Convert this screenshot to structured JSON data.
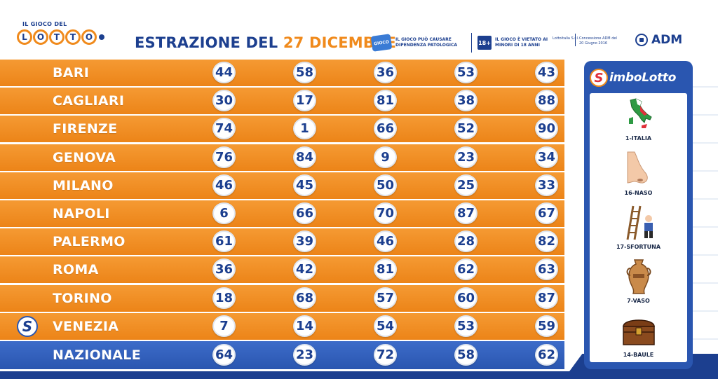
{
  "header": {
    "logo": {
      "top_text": "IL GIOCO DEL",
      "letters": [
        "L",
        "O",
        "T",
        "T",
        "O"
      ]
    },
    "title_prefix": "ESTRAZIONE DEL",
    "title_date": "27 DICEMBRE",
    "warning_badge": "GIOCO",
    "warning_text": "IL GIOCO PUÒ CAUSARE DIPENDENZA PATOLOGICA",
    "age_badge": "18+",
    "age_text": "IL GIOCO È VIETATO AI MINORI DI 18 ANNI",
    "operator_text": "Lottoitalia S.r.l.",
    "concession_text": "Concessione ADM del 20 Giugno 2016",
    "adm_label": "ADM"
  },
  "draws": [
    {
      "city": "BARI",
      "numbers": [
        "44",
        "58",
        "36",
        "53",
        "43"
      ]
    },
    {
      "city": "CAGLIARI",
      "numbers": [
        "30",
        "17",
        "81",
        "38",
        "88"
      ]
    },
    {
      "city": "FIRENZE",
      "numbers": [
        "74",
        "1",
        "66",
        "52",
        "90"
      ]
    },
    {
      "city": "GENOVA",
      "numbers": [
        "76",
        "84",
        "9",
        "23",
        "34"
      ]
    },
    {
      "city": "MILANO",
      "numbers": [
        "46",
        "45",
        "50",
        "25",
        "33"
      ]
    },
    {
      "city": "NAPOLI",
      "numbers": [
        "6",
        "66",
        "70",
        "87",
        "67"
      ]
    },
    {
      "city": "PALERMO",
      "numbers": [
        "61",
        "39",
        "46",
        "28",
        "82"
      ]
    },
    {
      "city": "ROMA",
      "numbers": [
        "36",
        "42",
        "81",
        "62",
        "63"
      ]
    },
    {
      "city": "TORINO",
      "numbers": [
        "18",
        "68",
        "57",
        "60",
        "87"
      ]
    },
    {
      "city": "VENEZIA",
      "numbers": [
        "7",
        "14",
        "54",
        "53",
        "59"
      ],
      "badge": "S"
    },
    {
      "city": "NAZIONALE",
      "numbers": [
        "64",
        "23",
        "72",
        "58",
        "62"
      ]
    }
  ],
  "simbolotto": {
    "badge": "S",
    "title": "imboLotto",
    "symbols": [
      {
        "label": "1-ITALIA",
        "icon": "italy-map-icon"
      },
      {
        "label": "16-NASO",
        "icon": "nose-icon"
      },
      {
        "label": "17-SFORTUNA",
        "icon": "ladder-misfortune-icon"
      },
      {
        "label": "7-VASO",
        "icon": "vase-icon"
      },
      {
        "label": "14-BAULE",
        "icon": "chest-icon"
      }
    ]
  },
  "colors": {
    "orange_row": "#ec8418",
    "blue_row": "#2a56b0",
    "navy_text": "#1c3f8f"
  }
}
